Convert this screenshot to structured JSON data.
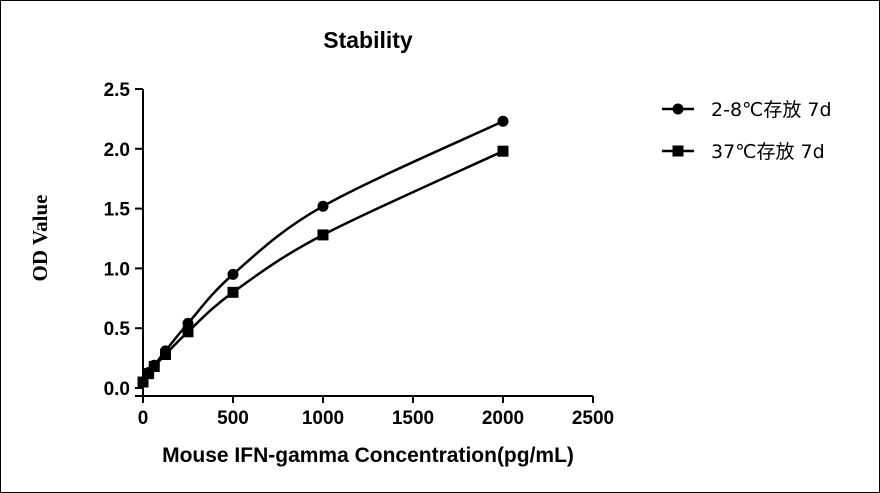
{
  "chart_data": {
    "type": "line",
    "title": "Stability",
    "xlabel": "Mouse IFN-gamma Concentration(pg/mL)",
    "ylabel": "OD Value",
    "xlim": [
      0,
      2500
    ],
    "ylim": [
      0,
      2.5
    ],
    "x_ticks": [
      0,
      500,
      1000,
      1500,
      2000,
      2500
    ],
    "y_ticks": [
      0.0,
      0.5,
      1.0,
      1.5,
      2.0,
      2.5
    ],
    "x_tick_labels": [
      "0",
      "500",
      "1000",
      "1500",
      "2000",
      "2500"
    ],
    "y_tick_labels": [
      "0.0",
      "0.5",
      "1.0",
      "1.5",
      "2.0",
      "2.5"
    ],
    "legend_position": "right",
    "grid": false,
    "series": [
      {
        "name": "2-8℃存放 7d",
        "marker": "circle",
        "color": "#000000",
        "x": [
          0,
          31.25,
          62.5,
          125,
          250,
          500,
          1000,
          2000
        ],
        "y": [
          0.05,
          0.13,
          0.19,
          0.31,
          0.54,
          0.95,
          1.52,
          2.23
        ]
      },
      {
        "name": "37℃存放 7d",
        "marker": "square",
        "color": "#000000",
        "x": [
          0,
          31.25,
          62.5,
          125,
          250,
          500,
          1000,
          2000
        ],
        "y": [
          0.05,
          0.12,
          0.18,
          0.28,
          0.47,
          0.8,
          1.28,
          1.98
        ]
      }
    ]
  }
}
